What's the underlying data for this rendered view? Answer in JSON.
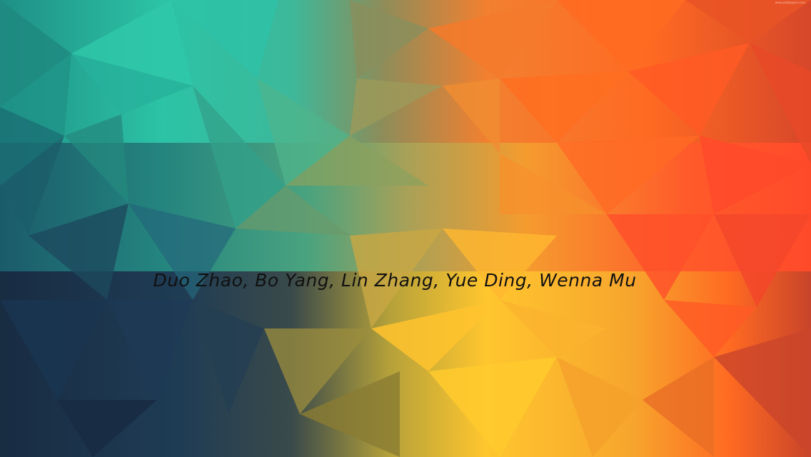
{
  "slide": {
    "authors": "Duo Zhao, Bo Yang, Lin Zhang, Yue Ding, Wenna Mu",
    "watermark": "www.wallpapers.com"
  },
  "palette": {
    "teal": "#2cc3a6",
    "deep_blue": "#1c2f45",
    "orange": "#ff6d1f",
    "red": "#ff4a2a",
    "yellow": "#ffc62e"
  }
}
